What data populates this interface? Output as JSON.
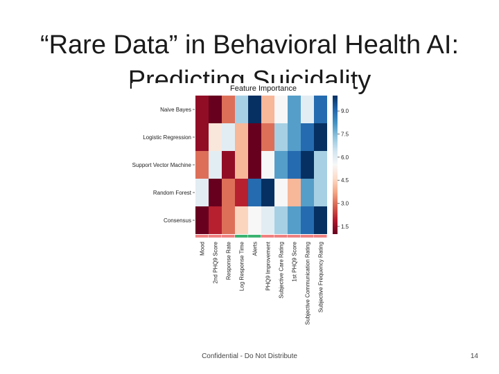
{
  "slide": {
    "title": "“Rare Data” in Behavioral Health AI: Predicting Suicidality",
    "footer": "Confidential - Do Not Distribute",
    "page_number": "14"
  },
  "chart_data": {
    "type": "heatmap",
    "title": "Feature Importance",
    "rows": [
      "Naive Bayes",
      "Logistic Regression",
      "Support Vector Machine",
      "Random Forest",
      "Consensus"
    ],
    "columns": [
      "Mood",
      "2nd PHQ9 Score",
      "Response Rate",
      "Log Response Time",
      "Alerts",
      "PHQ9 Improvement",
      "Subjective Care Rating",
      "1st PHQ9 Score",
      "Subjective Communication Rating",
      "Subjective Frequency Rating"
    ],
    "values": [
      [
        1.5,
        1.0,
        3.0,
        7.0,
        10.0,
        4.0,
        5.5,
        8.0,
        6.0,
        9.0
      ],
      [
        1.5,
        5.0,
        6.0,
        4.0,
        1.0,
        3.0,
        7.0,
        8.0,
        9.0,
        10.0
      ],
      [
        3.0,
        6.0,
        1.5,
        4.0,
        1.0,
        5.5,
        8.0,
        9.0,
        10.0,
        7.0
      ],
      [
        6.0,
        1.0,
        3.0,
        2.0,
        9.0,
        10.0,
        5.5,
        4.0,
        8.0,
        7.0
      ],
      [
        1.0,
        2.0,
        3.0,
        4.5,
        5.5,
        6.0,
        7.0,
        8.0,
        9.0,
        10.0
      ]
    ],
    "colorbar": {
      "ticks": [
        "9.0",
        "7.5",
        "6.0",
        "4.5",
        "3.0",
        "1.5"
      ],
      "min": 1.0,
      "max": 10.0
    },
    "colormap": [
      "#67001f",
      "#b2182b",
      "#d6604d",
      "#f4a582",
      "#fddbc7",
      "#f7f7f7",
      "#d1e5f0",
      "#92c5de",
      "#4393c3",
      "#2166ac",
      "#053061"
    ],
    "feature_group_colors": [
      "#f08080",
      "#f08080",
      "#f08080",
      "#3cb371",
      "#3cb371",
      "#f08080",
      "#f08080",
      "#f08080",
      "#f08080",
      "#f08080"
    ]
  }
}
